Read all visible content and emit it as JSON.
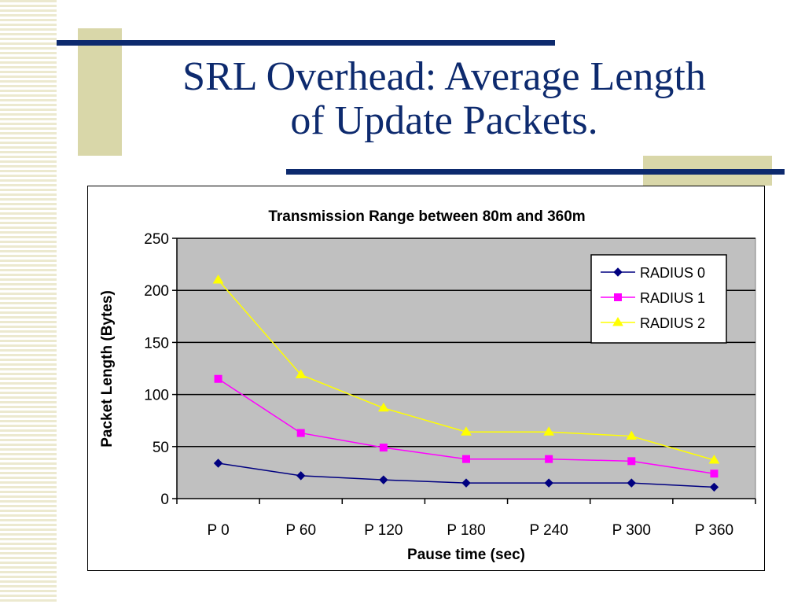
{
  "slide": {
    "title_line1": "SRL Overhead: Average Length",
    "title_line2": "of Update Packets."
  },
  "chart_data": {
    "type": "line",
    "title": "Transmission Range between 80m and 360m",
    "xlabel": "Pause time (sec)",
    "ylabel": "Packet Length (Bytes)",
    "categories": [
      "P 0",
      "P 60",
      "P 120",
      "P 180",
      "P 240",
      "P 300",
      "P 360"
    ],
    "ylim": [
      0,
      250
    ],
    "yticks": [
      0,
      50,
      100,
      150,
      200,
      250
    ],
    "grid": true,
    "legend_position": "top-right",
    "plot_background": "#c0c0c0",
    "series": [
      {
        "name": "RADIUS 0",
        "values": [
          34,
          22,
          18,
          15,
          15,
          15,
          11
        ],
        "color": "#000080",
        "marker": "diamond"
      },
      {
        "name": "RADIUS 1",
        "values": [
          115,
          63,
          49,
          38,
          38,
          36,
          24
        ],
        "color": "#ff00ff",
        "marker": "square"
      },
      {
        "name": "RADIUS 2",
        "values": [
          210,
          119,
          87,
          64,
          64,
          60,
          37
        ],
        "color": "#ffff00",
        "marker": "triangle"
      }
    ]
  }
}
